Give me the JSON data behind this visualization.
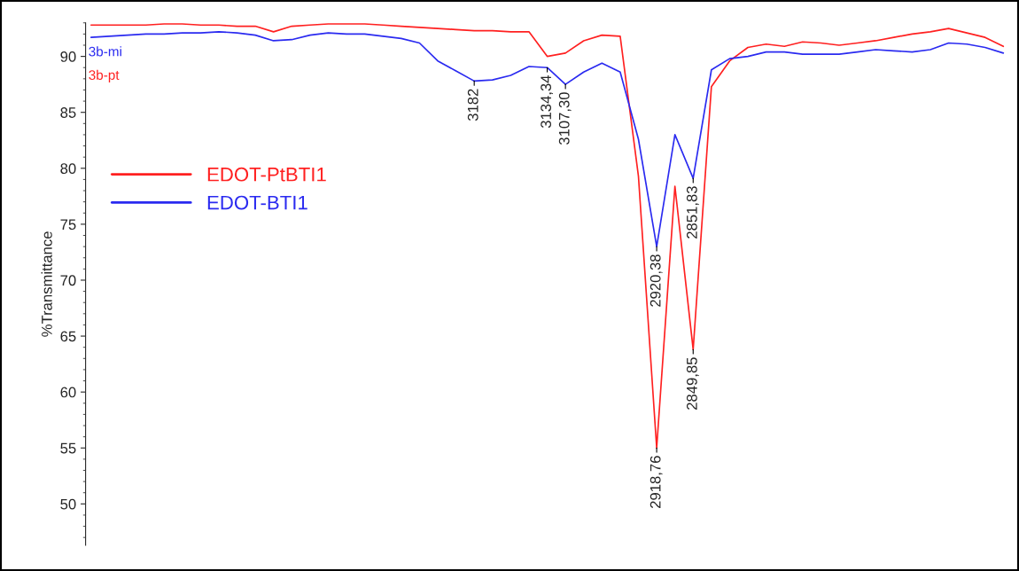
{
  "chart_data": {
    "type": "line",
    "ylabel": "%Transmittance",
    "ylim": [
      46.3,
      93.0
    ],
    "yticks": [
      50,
      55,
      60,
      65,
      70,
      75,
      80,
      85,
      90
    ],
    "grid": false,
    "legend": "left",
    "categories": [
      null,
      null,
      null,
      null,
      null,
      null,
      null,
      null,
      null,
      null,
      null,
      null,
      null,
      null,
      null,
      null,
      null,
      null,
      null,
      null,
      null,
      null,
      null,
      null,
      null,
      null,
      null,
      null,
      null,
      null,
      null,
      null,
      null,
      null,
      null,
      null,
      null,
      null,
      null,
      null,
      null,
      null,
      null,
      null,
      null,
      null,
      null,
      null,
      null,
      null,
      null
    ],
    "series": [
      {
        "name": "EDOT-PtBTI1",
        "color": "#ff2020",
        "values": [
          92.8,
          92.8,
          92.8,
          92.8,
          92.9,
          92.9,
          92.8,
          92.8,
          92.7,
          92.7,
          92.2,
          92.7,
          92.8,
          92.9,
          92.9,
          92.9,
          92.8,
          92.7,
          92.6,
          92.5,
          92.4,
          92.3,
          92.3,
          92.2,
          92.2,
          90.0,
          90.3,
          91.4,
          91.9,
          91.8,
          79.3,
          55.0,
          78.4,
          63.8,
          87.3,
          89.6,
          90.8,
          91.1,
          90.9,
          91.3,
          91.2,
          91.0,
          91.2,
          91.4,
          91.7,
          92.0,
          92.2,
          92.5,
          92.1,
          91.7,
          90.9
        ]
      },
      {
        "name": "EDOT-BTI1",
        "color": "#2a2af0",
        "values": [
          91.7,
          91.8,
          91.9,
          92.0,
          92.0,
          92.1,
          92.1,
          92.2,
          92.1,
          91.9,
          91.4,
          91.5,
          91.9,
          92.1,
          92.0,
          92.0,
          91.8,
          91.6,
          91.2,
          89.6,
          88.7,
          87.8,
          87.9,
          88.3,
          89.1,
          89.0,
          87.5,
          88.6,
          89.4,
          88.6,
          82.6,
          73.0,
          83.0,
          79.1,
          88.8,
          89.8,
          90.0,
          90.4,
          90.4,
          90.2,
          90.2,
          90.2,
          90.4,
          90.6,
          90.5,
          90.4,
          90.6,
          91.2,
          91.1,
          90.8,
          90.3
        ]
      }
    ],
    "annotations": [
      "3b-mi",
      "3b-pt",
      {
        "text": "3182",
        "y": 87.8
      },
      {
        "text": "3134,34",
        "y": 89.0
      },
      {
        "text": "3107,30",
        "y": 87.5
      },
      {
        "text": "2920,38",
        "y": 73.0
      },
      {
        "text": "2918,76",
        "y": 55.0
      },
      {
        "text": "2851,83",
        "y": 79.1
      },
      {
        "text": "2849,85",
        "y": 63.8
      }
    ]
  }
}
